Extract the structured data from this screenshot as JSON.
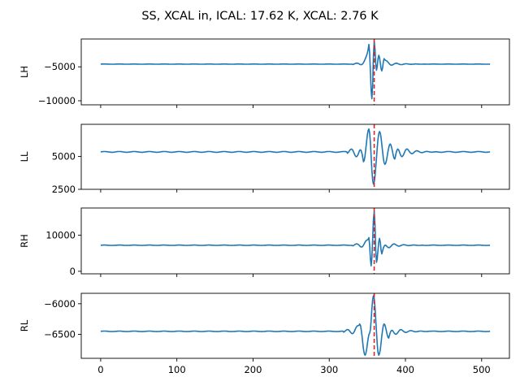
{
  "chart_data": {
    "type": "line",
    "title": "SS, XCAL in, ICAL: 17.62 K, XCAL: 2.76 K",
    "colors": {
      "line": "#1f77b4",
      "marker": "#d62728"
    },
    "marker_x": 359,
    "x_range": [
      0,
      511
    ],
    "xlim": [
      -25.5,
      536.5
    ],
    "xticks": [
      0,
      100,
      200,
      300,
      400,
      500
    ],
    "xtick_labels": [
      "0",
      "100",
      "200",
      "300",
      "400",
      "500"
    ],
    "subplots": [
      {
        "ylabel": "LH",
        "ylim": [
          -10600,
          -900
        ],
        "yticks": [
          -10000,
          -5000
        ],
        "ytick_labels": [
          "−10000",
          "−5000"
        ],
        "baseline": -4600,
        "envelope": [
          {
            "x": 352,
            "y": -1700
          },
          {
            "x": 356,
            "y": -9700
          },
          {
            "x": 359,
            "y": -1300
          },
          {
            "x": 362,
            "y": -5500
          },
          {
            "x": 365,
            "y": -3300
          },
          {
            "x": 369,
            "y": -5600
          },
          {
            "x": 372,
            "y": -3800
          }
        ],
        "ripple_amp": 400
      },
      {
        "ylabel": "LL",
        "ylim": [
          2500,
          7450
        ],
        "yticks": [
          2500,
          5000
        ],
        "ytick_labels": [
          "2500",
          "5000"
        ],
        "baseline": 5350,
        "envelope": [
          {
            "x": 345,
            "y": 4600
          },
          {
            "x": 352,
            "y": 7100
          },
          {
            "x": 358,
            "y": 2900
          },
          {
            "x": 366,
            "y": 6900
          },
          {
            "x": 373,
            "y": 4400
          },
          {
            "x": 380,
            "y": 5950
          },
          {
            "x": 386,
            "y": 4800
          }
        ],
        "ripple_amp": 700
      },
      {
        "ylabel": "RH",
        "ylim": [
          -700,
          17500
        ],
        "yticks": [
          0,
          10000
        ],
        "ytick_labels": [
          "0",
          "10000"
        ],
        "baseline": 7200,
        "envelope": [
          {
            "x": 352,
            "y": 9300
          },
          {
            "x": 355,
            "y": 1500
          },
          {
            "x": 359,
            "y": 16500
          },
          {
            "x": 362,
            "y": 2500
          },
          {
            "x": 366,
            "y": 9100
          },
          {
            "x": 369,
            "y": 4800
          }
        ],
        "ripple_amp": 1200
      },
      {
        "ylabel": "RL",
        "ylim": [
          -6890,
          -5830
        ],
        "yticks": [
          -6500,
          -6000
        ],
        "ytick_labels": [
          "−6500",
          "−6000"
        ],
        "baseline": -6450,
        "envelope": [
          {
            "x": 340,
            "y": -6330
          },
          {
            "x": 347,
            "y": -6840
          },
          {
            "x": 353,
            "y": -6480
          },
          {
            "x": 358,
            "y": -5870
          },
          {
            "x": 365,
            "y": -6840
          },
          {
            "x": 372,
            "y": -6330
          },
          {
            "x": 378,
            "y": -6560
          }
        ],
        "ripple_amp": 90
      }
    ]
  }
}
